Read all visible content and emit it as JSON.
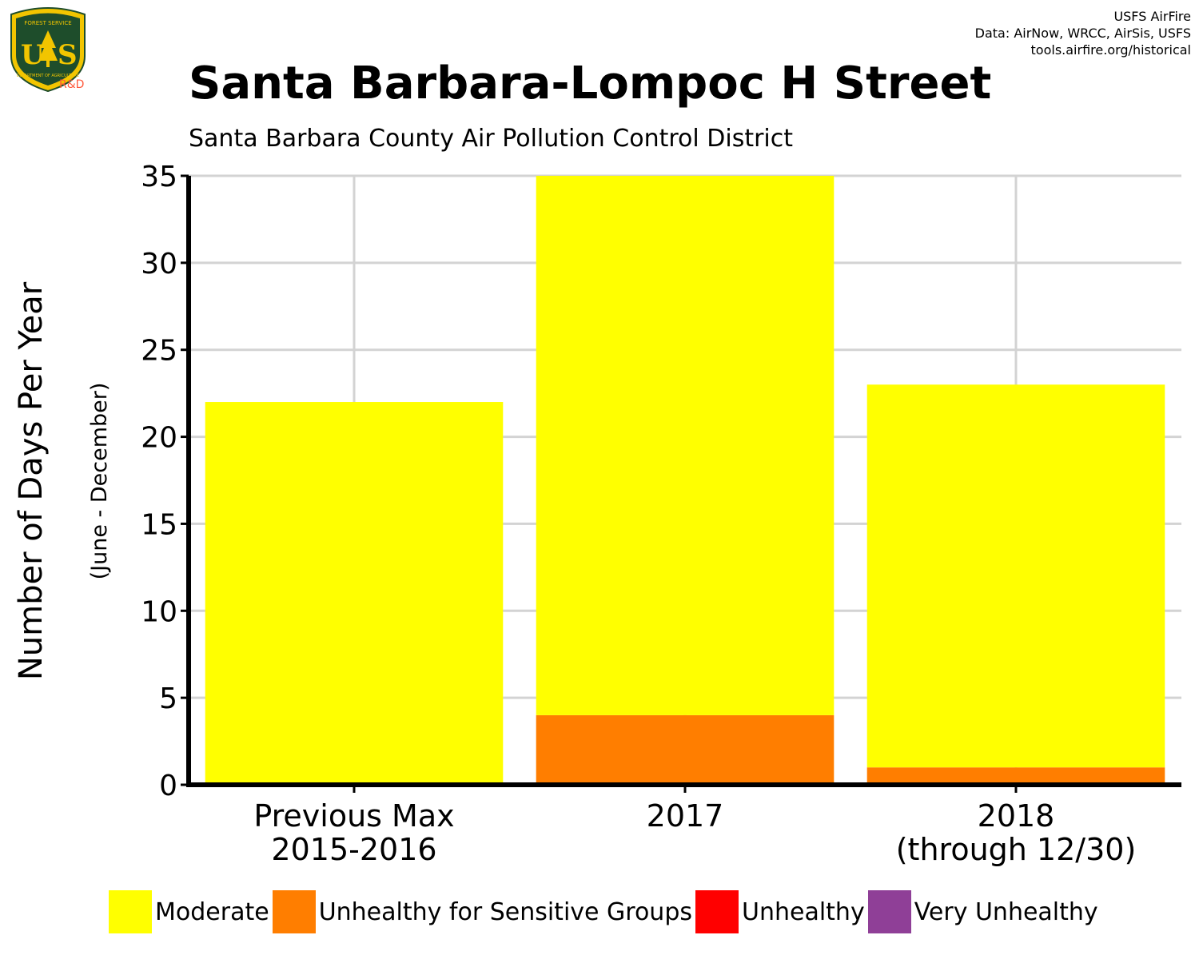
{
  "header": {
    "logo_text_top": "FOREST SERVICE",
    "logo_text_bottom": "DEPARTMENT OF AGRICULTURE",
    "logo_letters": "USFS shield",
    "logo_rd": "R&D",
    "credits": [
      "USFS AirFire",
      "Data: AirNow, WRCC, AirSis, USFS",
      "tools.airfire.org/historical"
    ]
  },
  "colors": {
    "moderate": "#ffff00",
    "usg": "#ff7e00",
    "unhealthy": "#ff0000",
    "very_unhealthy": "#8f3f97",
    "grid": "#d3d3d3",
    "logo_green": "#1e4d2b",
    "logo_gold": "#f2c500"
  },
  "chart_data": {
    "type": "bar",
    "stacked": true,
    "title": "Santa Barbara-Lompoc H Street",
    "subtitle": "Santa Barbara County Air Pollution Control District",
    "ylabel": "Number of Days Per Year",
    "ylabel_sub": "(June - December)",
    "xlabel": "",
    "ylim": [
      0,
      35
    ],
    "yticks": [
      0,
      5,
      10,
      15,
      20,
      25,
      30,
      35
    ],
    "grid": true,
    "legend_position": "bottom",
    "categories": [
      [
        "Previous Max",
        "2015-2016"
      ],
      [
        "2017"
      ],
      [
        "2018",
        "(through 12/30)"
      ]
    ],
    "series": [
      {
        "name": "Moderate",
        "color": "#ffff00",
        "values": [
          22,
          31,
          22
        ]
      },
      {
        "name": "Unhealthy for Sensitive Groups",
        "color": "#ff7e00",
        "values": [
          0,
          4,
          1
        ]
      },
      {
        "name": "Unhealthy",
        "color": "#ff0000",
        "values": [
          0,
          0,
          0
        ]
      },
      {
        "name": "Very Unhealthy",
        "color": "#8f3f97",
        "values": [
          0,
          0,
          0
        ]
      }
    ]
  }
}
